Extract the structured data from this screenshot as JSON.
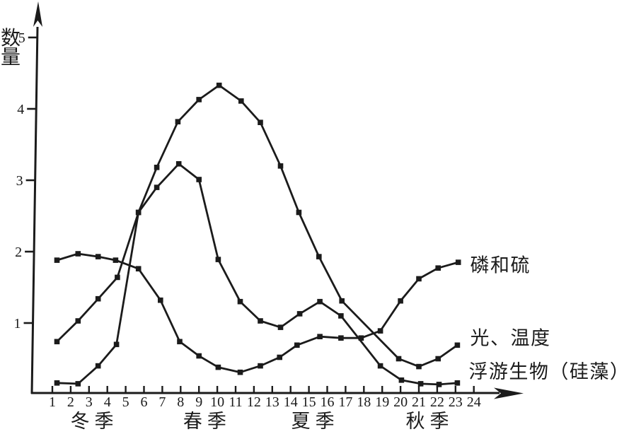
{
  "figure": {
    "background": "#ffffff",
    "ink": "#1b1b1b",
    "y_axis": {
      "title": "数量",
      "tick_labels": [
        "1",
        "2",
        "3",
        "4",
        "5"
      ],
      "tick_values": [
        1,
        2,
        3,
        4,
        5
      ]
    },
    "x_axis": {
      "tick_labels": [
        "1",
        "2",
        "3",
        "4",
        "5",
        "6",
        "7",
        "8",
        "9",
        "10",
        "11",
        "12",
        "13",
        "14",
        "15",
        "16",
        "17",
        "18",
        "19",
        "20",
        "21",
        "22",
        "23",
        "24"
      ]
    },
    "seasons": [
      {
        "id": "winter",
        "label": "冬季",
        "x": 3.3
      },
      {
        "id": "spring",
        "label": "春季",
        "x": 9.45
      },
      {
        "id": "summer",
        "label": "夏季",
        "x": 15.35
      },
      {
        "id": "autumn",
        "label": "秋季",
        "x": 21.6
      }
    ],
    "curve_labels": [
      {
        "id": "phosphorus-sulfur",
        "text": "磷和硫",
        "x": 23.8,
        "v": 1.72
      },
      {
        "id": "light-temperature",
        "text": "光、温度",
        "x": 23.8,
        "v": 0.7
      },
      {
        "id": "plankton-diatoms",
        "text": "浮游生物（硅藻）",
        "x": 23.72,
        "v": 0.23
      }
    ]
  },
  "chart_data": {
    "type": "line",
    "title": "",
    "xlabel": "",
    "ylabel": "数量",
    "xlim": [
      0,
      24.8
    ],
    "ylim": [
      0,
      5.5
    ],
    "grid": false,
    "legend": "inline labels at right end of curves",
    "marker": "square",
    "color": "#1b1b1b",
    "series": [
      {
        "id": "light-temperature",
        "name": "光、温度",
        "x": [
          1.25,
          2.4,
          3.5,
          4.55,
          5.7,
          6.7,
          7.85,
          9.0,
          10.1,
          11.3,
          12.35,
          13.45,
          14.45,
          15.55,
          16.8,
          19.9,
          21.0,
          22.05,
          23.1
        ],
        "values": [
          0.74,
          1.03,
          1.34,
          1.64,
          2.55,
          3.18,
          3.82,
          4.13,
          4.33,
          4.11,
          3.81,
          3.2,
          2.55,
          1.93,
          1.31,
          0.5,
          0.39,
          0.5,
          0.69
        ]
      },
      {
        "id": "plankton-diatoms",
        "name": "浮游生物（硅藻）",
        "x": [
          1.25,
          2.4,
          3.5,
          4.5,
          5.7,
          6.7,
          7.9,
          9.0,
          10.05,
          11.25,
          12.35,
          13.45,
          14.5,
          15.6,
          16.75,
          18.9,
          20.05,
          21.1,
          22.1,
          23.1
        ],
        "values": [
          0.16,
          0.15,
          0.4,
          0.7,
          2.55,
          2.9,
          3.23,
          3.01,
          1.89,
          1.3,
          1.03,
          0.94,
          1.13,
          1.3,
          1.1,
          0.4,
          0.2,
          0.15,
          0.14,
          0.16
        ]
      },
      {
        "id": "phosphorus-sulfur",
        "name": "磷和硫",
        "x": [
          1.25,
          2.4,
          3.5,
          4.45,
          5.7,
          6.9,
          7.95,
          9.0,
          10.05,
          11.25,
          12.35,
          13.4,
          14.35,
          15.6,
          16.75,
          17.85,
          18.9,
          20.0,
          21.0,
          22.05,
          23.15
        ],
        "values": [
          1.88,
          1.97,
          1.93,
          1.88,
          1.76,
          1.32,
          0.74,
          0.54,
          0.38,
          0.31,
          0.4,
          0.52,
          0.69,
          0.81,
          0.79,
          0.79,
          0.89,
          1.31,
          1.62,
          1.77,
          1.85
        ]
      }
    ]
  }
}
